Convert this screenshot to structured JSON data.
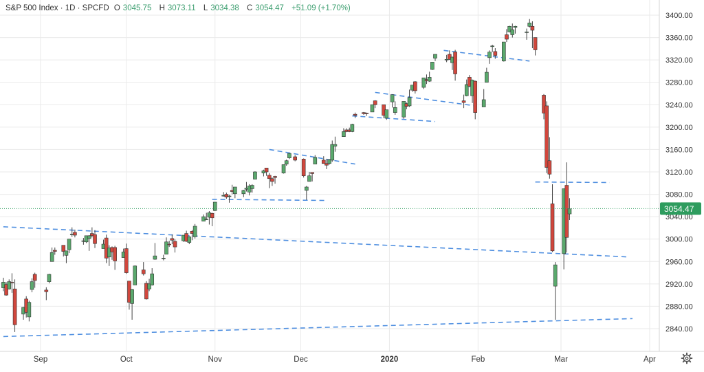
{
  "header": {
    "symbol": "S&P 500 Index · 1D · SPCFD",
    "o_label": "O",
    "o_value": "3045.75",
    "h_label": "H",
    "h_value": "3073.11",
    "l_label": "L",
    "l_value": "3034.38",
    "c_label": "C",
    "c_value": "3054.47",
    "change": "+51.09 (+1.70%)"
  },
  "colors": {
    "up": "#5aa96d",
    "down": "#d1473d",
    "trendline": "#4f8fe0",
    "grid": "#eaeaea",
    "last_price_badge": "#2e9c5e"
  },
  "chart_data": {
    "type": "candlestick",
    "title": "S&P 500 Index",
    "interval": "1D",
    "ylim": [
      2820,
      3420
    ],
    "y_ticks": [
      "3400.00",
      "3360.00",
      "3320.00",
      "3280.00",
      "3240.00",
      "3200.00",
      "3160.00",
      "3120.00",
      "3080.00",
      "3040.00",
      "3000.00",
      "2960.00",
      "2920.00",
      "2880.00",
      "2840.00"
    ],
    "x_ticks": [
      {
        "label": "Sep",
        "date": "2019-09-01"
      },
      {
        "label": "Oct",
        "date": "2019-10-01"
      },
      {
        "label": "Nov",
        "date": "2019-11-01"
      },
      {
        "label": "Dec",
        "date": "2019-12-01"
      },
      {
        "label": "2020",
        "date": "2020-01-01"
      },
      {
        "label": "Feb",
        "date": "2020-02-01"
      },
      {
        "label": "Mar",
        "date": "2020-03-01"
      },
      {
        "label": "Apr",
        "date": "2020-04-01"
      }
    ],
    "last_price": "3054.47",
    "last_price_value": 3054.47,
    "candles": [
      [
        "2019-08-19",
        2913,
        2931,
        2907,
        2923
      ],
      [
        "2019-08-20",
        2919,
        2923,
        2899,
        2900
      ],
      [
        "2019-08-21",
        2911,
        2928,
        2910,
        2924
      ],
      [
        "2019-08-22",
        2923,
        2939,
        2904,
        2922
      ],
      [
        "2019-08-23",
        2911,
        2928,
        2834,
        2847
      ],
      [
        "2019-08-26",
        2866,
        2879,
        2856,
        2878
      ],
      [
        "2019-08-27",
        2893,
        2898,
        2860,
        2869
      ],
      [
        "2019-08-28",
        2861,
        2890,
        2853,
        2887
      ],
      [
        "2019-08-29",
        2910,
        2930,
        2905,
        2924
      ],
      [
        "2019-08-30",
        2937,
        2940,
        2913,
        2926
      ],
      [
        "2019-09-03",
        2909,
        2914,
        2891,
        2906
      ],
      [
        "2019-09-04",
        2924,
        2938,
        2921,
        2937
      ],
      [
        "2019-09-05",
        2960,
        2985,
        2960,
        2976
      ],
      [
        "2019-09-06",
        2980,
        2985,
        2972,
        2978
      ],
      [
        "2019-09-09",
        2989,
        2989,
        2969,
        2978
      ],
      [
        "2019-09-10",
        2971,
        2979,
        2957,
        2979
      ],
      [
        "2019-09-11",
        2981,
        3000,
        2975,
        3000
      ],
      [
        "2019-09-12",
        3009,
        3021,
        3004,
        3009
      ],
      [
        "2019-09-13",
        3012,
        3017,
        3003,
        3007
      ],
      [
        "2019-09-16",
        2997,
        3002,
        2990,
        2997
      ],
      [
        "2019-09-17",
        2995,
        3006,
        2993,
        3006
      ],
      [
        "2019-09-18",
        3001,
        3007,
        2979,
        3006
      ],
      [
        "2019-09-19",
        3010,
        3021,
        3003,
        3006
      ],
      [
        "2019-09-20",
        3008,
        3016,
        2984,
        2992
      ],
      [
        "2019-09-23",
        2983,
        2999,
        2983,
        2991
      ],
      [
        "2019-09-24",
        3002,
        3008,
        2957,
        2966
      ],
      [
        "2019-09-25",
        2968,
        2989,
        2952,
        2984
      ],
      [
        "2019-09-26",
        2985,
        2987,
        2963,
        2977
      ],
      [
        "2019-09-27",
        2985,
        2988,
        2945,
        2961
      ],
      [
        "2019-09-30",
        2967,
        2983,
        2967,
        2977
      ],
      [
        "2019-10-01",
        2983,
        2992,
        2938,
        2940
      ],
      [
        "2019-10-02",
        2925,
        2925,
        2874,
        2887
      ],
      [
        "2019-10-03",
        2885,
        2911,
        2856,
        2910
      ],
      [
        "2019-10-04",
        2918,
        2953,
        2918,
        2952
      ],
      [
        "2019-10-07",
        2945,
        2959,
        2935,
        2938
      ],
      [
        "2019-10-08",
        2921,
        2925,
        2892,
        2893
      ],
      [
        "2019-10-09",
        2911,
        2929,
        2907,
        2920
      ],
      [
        "2019-10-10",
        2918,
        2948,
        2917,
        2938
      ],
      [
        "2019-10-11",
        2964,
        2993,
        2963,
        2970
      ],
      [
        "2019-10-14",
        2965,
        2972,
        2962,
        2966
      ],
      [
        "2019-10-15",
        2973,
        3003,
        2973,
        2995
      ],
      [
        "2019-10-16",
        2991,
        2997,
        2986,
        2990
      ],
      [
        "2019-10-17",
        3001,
        3008,
        2991,
        2998
      ],
      [
        "2019-10-18",
        2996,
        3000,
        2976,
        2986
      ],
      [
        "2019-10-21",
        2997,
        3007,
        2995,
        3007
      ],
      [
        "2019-10-22",
        3010,
        3015,
        2995,
        2996
      ],
      [
        "2019-10-23",
        2994,
        3005,
        2991,
        3004
      ],
      [
        "2019-10-24",
        3014,
        3016,
        2998,
        3010
      ],
      [
        "2019-10-25",
        3004,
        3027,
        3001,
        3023
      ],
      [
        "2019-10-28",
        3032,
        3044,
        3032,
        3040
      ],
      [
        "2019-10-29",
        3036,
        3047,
        3034,
        3036
      ],
      [
        "2019-10-30",
        3039,
        3050,
        3026,
        3047
      ],
      [
        "2019-10-31",
        3046,
        3047,
        3023,
        3038
      ],
      [
        "2019-11-01",
        3051,
        3066,
        3050,
        3066
      ],
      [
        "2019-11-04",
        3078,
        3084,
        3076,
        3078
      ],
      [
        "2019-11-05",
        3080,
        3083,
        3072,
        3075
      ],
      [
        "2019-11-06",
        3076,
        3079,
        3065,
        3077
      ],
      [
        "2019-11-07",
        3087,
        3097,
        3080,
        3085
      ],
      [
        "2019-11-08",
        3081,
        3093,
        3073,
        3093
      ],
      [
        "2019-11-11",
        3081,
        3088,
        3075,
        3087
      ],
      [
        "2019-11-12",
        3089,
        3102,
        3085,
        3091
      ],
      [
        "2019-11-13",
        3084,
        3098,
        3078,
        3095
      ],
      [
        "2019-11-14",
        3090,
        3098,
        3083,
        3096
      ],
      [
        "2019-11-15",
        3107,
        3121,
        3107,
        3120
      ],
      [
        "2019-11-18",
        3118,
        3124,
        3112,
        3122
      ],
      [
        "2019-11-19",
        3127,
        3127,
        3113,
        3120
      ],
      [
        "2019-11-20",
        3114,
        3118,
        3091,
        3108
      ],
      [
        "2019-11-21",
        3108,
        3110,
        3095,
        3103
      ],
      [
        "2019-11-22",
        3112,
        3113,
        3099,
        3110
      ],
      [
        "2019-11-25",
        3118,
        3133,
        3117,
        3133
      ],
      [
        "2019-11-26",
        3134,
        3142,
        3131,
        3140
      ],
      [
        "2019-11-27",
        3145,
        3154,
        3143,
        3153
      ],
      [
        "2019-11-29",
        3147,
        3150,
        3139,
        3141
      ],
      [
        "2019-12-02",
        3143,
        3144,
        3110,
        3113
      ],
      [
        "2019-12-03",
        3087,
        3095,
        3070,
        3093
      ],
      [
        "2019-12-04",
        3103,
        3120,
        3103,
        3113
      ],
      [
        "2019-12-05",
        3119,
        3119,
        3103,
        3117
      ],
      [
        "2019-12-06",
        3134,
        3150,
        3134,
        3146
      ],
      [
        "2019-12-09",
        3141,
        3148,
        3135,
        3135
      ],
      [
        "2019-12-10",
        3135,
        3143,
        3125,
        3132
      ],
      [
        "2019-12-11",
        3135,
        3143,
        3133,
        3142
      ],
      [
        "2019-12-12",
        3141,
        3176,
        3138,
        3169
      ],
      [
        "2019-12-13",
        3166,
        3183,
        3156,
        3169
      ],
      [
        "2019-12-16",
        3183,
        3198,
        3183,
        3192
      ],
      [
        "2019-12-17",
        3195,
        3198,
        3191,
        3192
      ],
      [
        "2019-12-18",
        3195,
        3199,
        3191,
        3192
      ],
      [
        "2019-12-19",
        3192,
        3206,
        3191,
        3205
      ],
      [
        "2019-12-20",
        3223,
        3226,
        3216,
        3221
      ],
      [
        "2019-12-23",
        3226,
        3227,
        3222,
        3224
      ],
      [
        "2019-12-24",
        3225,
        3226,
        3220,
        3224
      ],
      [
        "2019-12-26",
        3227,
        3240,
        3227,
        3240
      ],
      [
        "2019-12-27",
        3247,
        3248,
        3234,
        3240
      ],
      [
        "2019-12-30",
        3240,
        3240,
        3216,
        3221
      ],
      [
        "2019-12-31",
        3216,
        3231,
        3213,
        3231
      ],
      [
        "2020-01-02",
        3245,
        3258,
        3235,
        3258
      ],
      [
        "2020-01-03",
        3226,
        3246,
        3222,
        3235
      ],
      [
        "2020-01-06",
        3218,
        3246,
        3215,
        3246
      ],
      [
        "2020-01-07",
        3242,
        3244,
        3232,
        3237
      ],
      [
        "2020-01-08",
        3238,
        3267,
        3236,
        3253
      ],
      [
        "2020-01-09",
        3266,
        3275,
        3263,
        3275
      ],
      [
        "2020-01-10",
        3281,
        3282,
        3260,
        3265
      ],
      [
        "2020-01-13",
        3271,
        3288,
        3268,
        3288
      ],
      [
        "2020-01-14",
        3285,
        3294,
        3277,
        3283
      ],
      [
        "2020-01-15",
        3282,
        3299,
        3281,
        3289
      ],
      [
        "2020-01-16",
        3303,
        3316,
        3302,
        3316
      ],
      [
        "2020-01-17",
        3323,
        3330,
        3318,
        3330
      ],
      [
        "2020-01-21",
        3321,
        3329,
        3316,
        3321
      ],
      [
        "2020-01-22",
        3330,
        3337,
        3320,
        3321
      ],
      [
        "2020-01-23",
        3315,
        3326,
        3302,
        3325
      ],
      [
        "2020-01-24",
        3334,
        3338,
        3283,
        3295
      ],
      [
        "2020-01-27",
        3247,
        3258,
        3234,
        3244
      ],
      [
        "2020-01-28",
        3256,
        3285,
        3255,
        3276
      ],
      [
        "2020-01-29",
        3289,
        3293,
        3271,
        3273
      ],
      [
        "2020-01-30",
        3256,
        3285,
        3243,
        3284
      ],
      [
        "2020-01-31",
        3282,
        3283,
        3214,
        3226
      ],
      [
        "2020-02-03",
        3236,
        3268,
        3236,
        3249
      ],
      [
        "2020-02-04",
        3280,
        3306,
        3280,
        3298
      ],
      [
        "2020-02-05",
        3324,
        3337,
        3313,
        3334
      ],
      [
        "2020-02-06",
        3344,
        3347,
        3334,
        3345
      ],
      [
        "2020-02-07",
        3335,
        3341,
        3322,
        3328
      ],
      [
        "2020-02-10",
        3318,
        3352,
        3317,
        3352
      ],
      [
        "2020-02-11",
        3365,
        3375,
        3352,
        3357
      ],
      [
        "2020-02-12",
        3370,
        3381,
        3369,
        3380
      ],
      [
        "2020-02-13",
        3365,
        3385,
        3360,
        3374
      ],
      [
        "2020-02-14",
        3378,
        3381,
        3367,
        3380
      ],
      [
        "2020-02-18",
        3369,
        3376,
        3356,
        3370
      ],
      [
        "2020-02-19",
        3380,
        3393,
        3378,
        3386
      ],
      [
        "2020-02-20",
        3380,
        3389,
        3341,
        3373
      ],
      [
        "2020-02-21",
        3360,
        3360,
        3328,
        3338
      ],
      [
        "2020-02-24",
        3257,
        3259,
        3214,
        3225
      ],
      [
        "2020-02-25",
        3238,
        3246,
        3118,
        3128
      ],
      [
        "2020-02-26",
        3140,
        3182,
        3108,
        3116
      ],
      [
        "2020-02-27",
        3063,
        3098,
        2977,
        2979
      ],
      [
        "2020-02-28",
        2916,
        2959,
        2856,
        2954
      ],
      [
        "2020-03-02",
        2974,
        3090,
        2946,
        3090
      ],
      [
        "2020-03-03",
        3096,
        3137,
        2976,
        3003
      ],
      [
        "2020-03-04",
        3045,
        3073,
        3034,
        3054
      ]
    ],
    "trendlines": [
      {
        "from": [
          "2019-08-19",
          3022
        ],
        "to": [
          "2020-03-25",
          2968
        ]
      },
      {
        "from": [
          "2019-08-19",
          2826
        ],
        "to": [
          "2020-03-26",
          2858
        ]
      },
      {
        "from": [
          "2019-10-31",
          3071
        ],
        "to": [
          "2019-12-10",
          3069
        ]
      },
      {
        "from": [
          "2019-11-20",
          3160
        ],
        "to": [
          "2019-12-20",
          3134
        ]
      },
      {
        "from": [
          "2019-12-19",
          3220
        ],
        "to": [
          "2020-01-17",
          3210
        ]
      },
      {
        "from": [
          "2019-12-27",
          3262
        ],
        "to": [
          "2020-01-31",
          3238
        ]
      },
      {
        "from": [
          "2020-01-20",
          3337
        ],
        "to": [
          "2020-02-19",
          3318
        ]
      },
      {
        "from": [
          "2020-02-21",
          3102
        ],
        "to": [
          "2020-03-18",
          3101
        ]
      }
    ]
  }
}
